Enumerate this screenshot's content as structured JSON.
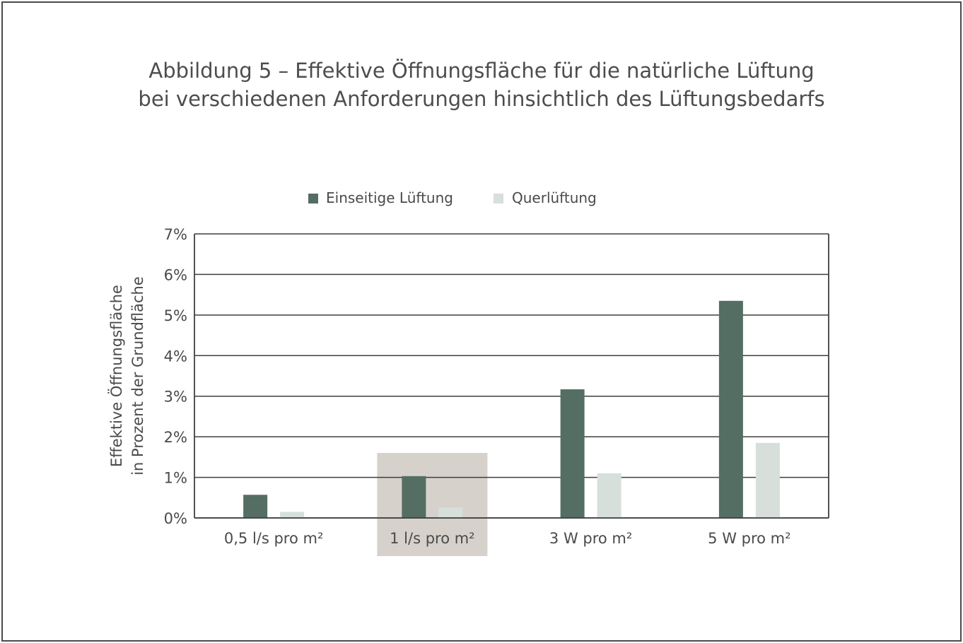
{
  "colors": {
    "series1": "#546e63",
    "series2": "#d6dfda",
    "highlight": "#d6d1cb",
    "grid": "#3f3f3f",
    "text": "#4a4a4a"
  },
  "chart_data": {
    "type": "bar",
    "title": [
      "Abbildung 5 – Effektive Öffnungsfläche für die natürliche Lüftung",
      "bei verschiedenen Anforderungen hinsichtlich des Lüftungsbedarfs"
    ],
    "xlabel": "",
    "ylabel": [
      "Effektive Öffnungsfläche",
      "in Prozent der Grundfläche"
    ],
    "categories": [
      "0,5 l/s pro m²",
      "1 l/s pro m²",
      "3 W pro m²",
      "5 W pro m²"
    ],
    "highlighted_category": "1 l/s pro m²",
    "series": [
      {
        "name": "Einseitige Lüftung",
        "values": [
          0.57,
          1.03,
          3.17,
          5.35
        ]
      },
      {
        "name": "Querlüftung",
        "values": [
          0.15,
          0.26,
          1.1,
          1.85
        ]
      }
    ],
    "ylim": [
      0,
      7
    ],
    "yticks": [
      "0%",
      "1%",
      "2%",
      "3%",
      "4%",
      "5%",
      "6%",
      "7%"
    ],
    "grid": true,
    "legend_position": "top-center"
  }
}
